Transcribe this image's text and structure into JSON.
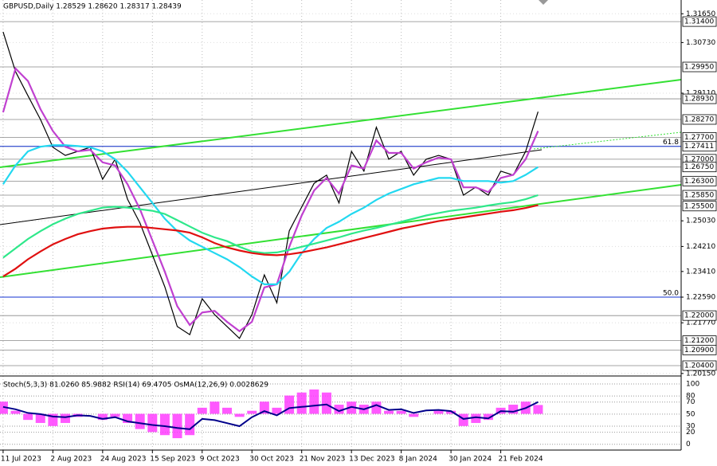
{
  "chart_data": [
    {
      "type": "line",
      "title": "GBPUSD,Daily  1.28529 1.28620 1.28317 1.28439",
      "x": [
        0,
        4,
        8,
        12,
        16,
        20,
        24,
        28,
        32,
        36,
        40,
        44,
        48,
        52,
        56,
        60,
        64,
        68,
        72,
        76,
        80,
        84,
        88,
        92,
        96,
        100,
        104,
        108,
        112,
        116,
        120,
        124,
        128,
        132,
        136,
        140,
        144,
        148,
        152,
        156,
        160,
        164,
        168,
        172
      ],
      "xlim": [
        -1,
        218
      ],
      "xticks": [
        {
          "value": 0,
          "label": "11 Jul 2023"
        },
        {
          "value": 16,
          "label": "2 Aug 2023"
        },
        {
          "value": 32,
          "label": "24 Aug 2023"
        },
        {
          "value": 48,
          "label": "15 Sep 2023"
        },
        {
          "value": 64,
          "label": "9 Oct 2023"
        },
        {
          "value": 80,
          "label": "30 Oct 2023"
        },
        {
          "value": 96,
          "label": "21 Nov 2023"
        },
        {
          "value": 112,
          "label": "13 Dec 2023"
        },
        {
          "value": 128,
          "label": "8 Jan 2024"
        },
        {
          "value": 144,
          "label": "30 Jan 2024"
        },
        {
          "value": 160,
          "label": "21 Feb 2024"
        }
      ],
      "ylim": [
        1.2012,
        1.3209
      ],
      "yticks": [
        {
          "value": 1.3165,
          "label": "1.31650"
        },
        {
          "value": 1.3073,
          "label": "1.30730"
        },
        {
          "value": 1.2911,
          "label": "1.29110"
        },
        {
          "value": 1.2503,
          "label": "1.25030"
        },
        {
          "value": 1.2421,
          "label": "1.24210"
        },
        {
          "value": 1.2341,
          "label": "1.23410"
        },
        {
          "value": 1.2259,
          "label": "1.22590"
        },
        {
          "value": 1.2177,
          "label": "1.21770"
        },
        {
          "value": 1.2015,
          "label": "1.20150"
        }
      ],
      "levels": [
        {
          "value": 1.314,
          "label": "1.31400"
        },
        {
          "value": 1.2995,
          "label": "1.29950"
        },
        {
          "value": 1.2893,
          "label": "1.28930"
        },
        {
          "value": 1.2827,
          "label": "1.28270"
        },
        {
          "value": 1.277,
          "label": "1.27700"
        },
        {
          "value": 1.27411,
          "label": "1.27411"
        },
        {
          "value": 1.27,
          "label": "1.27000"
        },
        {
          "value": 1.2675,
          "label": "1.26750"
        },
        {
          "value": 1.263,
          "label": "1.26300"
        },
        {
          "value": 1.2585,
          "label": "1.25850"
        },
        {
          "value": 1.255,
          "label": "1.25500"
        },
        {
          "value": 1.22,
          "label": "1.22000"
        },
        {
          "value": 1.212,
          "label": "1.21200"
        },
        {
          "value": 1.209,
          "label": "1.20900"
        },
        {
          "value": 1.204,
          "label": "1.20400"
        }
      ],
      "fib_levels": [
        {
          "value": 1.27411,
          "label": "61.8"
        },
        {
          "value": 1.2259,
          "label": "50.0"
        }
      ],
      "grid": true,
      "series": [
        {
          "color": "#000000",
          "values": [
            1.3107,
            1.298,
            1.2903,
            1.2827,
            1.2738,
            1.2712,
            1.2725,
            1.2738,
            1.2636,
            1.27,
            1.2572,
            1.2496,
            1.2394,
            1.2292,
            1.2165,
            1.2139,
            1.2254,
            1.2203,
            1.2165,
            1.2127,
            1.2203,
            1.233,
            1.2241,
            1.2471,
            1.2547,
            1.2623,
            1.2649,
            1.256,
            1.2725,
            1.2662,
            1.2802,
            1.27,
            1.2725,
            1.2649,
            1.27,
            1.2712,
            1.27,
            1.2585,
            1.2611,
            1.2585,
            1.2662,
            1.2649,
            1.2725,
            1.2852
          ]
        },
        {
          "color": "#c040d0",
          "values": [
            1.285,
            1.299,
            1.295,
            1.286,
            1.279,
            1.274,
            1.2725,
            1.273,
            1.269,
            1.268,
            1.262,
            1.254,
            1.244,
            1.234,
            1.223,
            1.217,
            1.221,
            1.2215,
            1.218,
            1.215,
            1.218,
            1.229,
            1.23,
            1.242,
            1.252,
            1.26,
            1.264,
            1.259,
            1.268,
            1.267,
            1.276,
            1.272,
            1.272,
            1.267,
            1.269,
            1.2705,
            1.27,
            1.261,
            1.261,
            1.2595,
            1.264,
            1.265,
            1.27,
            1.279
          ]
        },
        {
          "color": "#22d8f0",
          "values": [
            1.262,
            1.268,
            1.2725,
            1.274,
            1.2745,
            1.2745,
            1.2742,
            1.2738,
            1.2725,
            1.27,
            1.266,
            1.261,
            1.256,
            1.251,
            1.247,
            1.244,
            1.242,
            1.24,
            1.238,
            1.2355,
            1.2325,
            1.23,
            1.23,
            1.234,
            1.24,
            1.2445,
            1.248,
            1.25,
            1.2525,
            1.2545,
            1.257,
            1.259,
            1.2605,
            1.262,
            1.263,
            1.264,
            1.264,
            1.263,
            1.263,
            1.263,
            1.2625,
            1.263,
            1.265,
            1.2675
          ]
        },
        {
          "color": "#2ee88a",
          "values": [
            1.2385,
            1.2415,
            1.2445,
            1.247,
            1.2492,
            1.251,
            1.2525,
            1.2535,
            1.2545,
            1.2548,
            1.2545,
            1.254,
            1.2535,
            1.2525,
            1.2505,
            1.2485,
            1.2465,
            1.245,
            1.2438,
            1.242,
            1.2405,
            1.24,
            1.2402,
            1.241,
            1.242,
            1.243,
            1.244,
            1.245,
            1.2462,
            1.2472,
            1.248,
            1.249,
            1.25,
            1.251,
            1.252,
            1.2528,
            1.2535,
            1.254,
            1.2545,
            1.2552,
            1.2558,
            1.2563,
            1.2572,
            1.2585
          ]
        },
        {
          "color": "#e01010",
          "values": [
            1.2325,
            1.235,
            1.238,
            1.2405,
            1.2428,
            1.2445,
            1.246,
            1.247,
            1.2478,
            1.2482,
            1.2484,
            1.2484,
            1.248,
            1.2476,
            1.2472,
            1.2465,
            1.245,
            1.2432,
            1.2418,
            1.2408,
            1.24,
            1.2395,
            1.2393,
            1.2396,
            1.2402,
            1.241,
            1.2418,
            1.2428,
            1.2438,
            1.2448,
            1.2458,
            1.2468,
            1.2478,
            1.2486,
            1.2494,
            1.2502,
            1.2508,
            1.2514,
            1.252,
            1.2526,
            1.2532,
            1.2537,
            1.2544,
            1.2553
          ]
        }
      ]
    },
    {
      "type": "oscillator",
      "title": "Stoch(5,3,3) 81.0260 85.9882 RSI(14) 69.4705 OsMA(12,26,9) 0.0028629",
      "x": [
        0,
        4,
        8,
        12,
        16,
        20,
        24,
        28,
        32,
        36,
        40,
        44,
        48,
        52,
        56,
        60,
        64,
        68,
        72,
        76,
        80,
        84,
        88,
        92,
        96,
        100,
        104,
        108,
        112,
        116,
        120,
        124,
        128,
        132,
        136,
        140,
        144,
        148,
        152,
        156,
        160,
        164,
        168,
        172
      ],
      "xlim": [
        -1,
        218
      ],
      "ylim": [
        -3,
        104
      ],
      "yticks": [
        100,
        80,
        70,
        50,
        30,
        20,
        0
      ],
      "y2lim": [
        -0.0106,
        0.0106
      ],
      "series": [
        {
          "color": "#ff30ff",
          "axis": "y2",
          "values": [
            0.004,
            0.001,
            -0.002,
            -0.003,
            -0.004,
            -0.003,
            -0.001,
            0,
            -0.002,
            -0.001,
            -0.003,
            -0.005,
            -0.006,
            -0.007,
            -0.008,
            -0.007,
            0.002,
            0.004,
            0.002,
            -0.001,
            0.001,
            0.004,
            0.002,
            0.006,
            0.007,
            0.008,
            0.007,
            0.003,
            0.004,
            0.003,
            0.004,
            0.001,
            0.001,
            -0.001,
            0,
            0.001,
            0.001,
            -0.004,
            -0.003,
            -0.002,
            0.002,
            0.003,
            0.004,
            0.0029
          ]
        },
        {
          "color": "#00008b",
          "values": [
            62,
            58,
            52,
            50,
            46,
            45,
            48,
            47,
            42,
            45,
            38,
            35,
            32,
            30,
            27,
            25,
            42,
            40,
            35,
            30,
            45,
            55,
            48,
            60,
            62,
            64,
            66,
            55,
            62,
            58,
            65,
            57,
            58,
            52,
            56,
            57,
            55,
            42,
            45,
            43,
            55,
            54,
            60,
            70
          ]
        }
      ]
    }
  ]
}
